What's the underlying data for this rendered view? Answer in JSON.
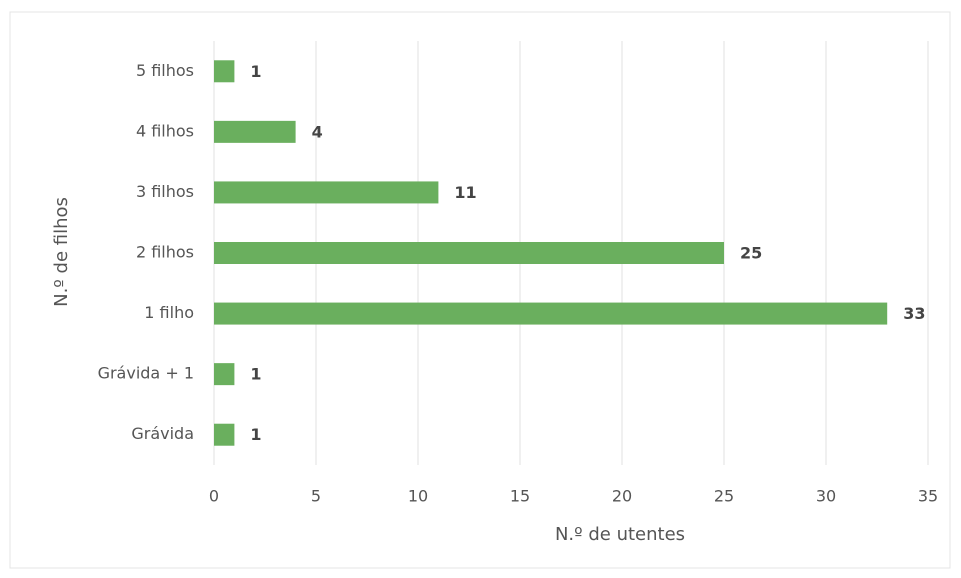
{
  "chart_data": {
    "type": "bar",
    "orientation": "horizontal",
    "categories": [
      "5 filhos",
      "4 filhos",
      "3 filhos",
      "2 filhos",
      "1 filho",
      "Grávida + 1",
      "Grávida"
    ],
    "values": [
      1,
      4,
      11,
      25,
      33,
      1,
      1
    ],
    "color": "#6aaf5e",
    "xlabel": "N.º de utentes",
    "ylabel": "N.º de filhos",
    "xlim": [
      0,
      35
    ],
    "xticks": [
      0,
      5,
      10,
      15,
      20,
      25,
      30,
      35
    ],
    "grid": true
  }
}
